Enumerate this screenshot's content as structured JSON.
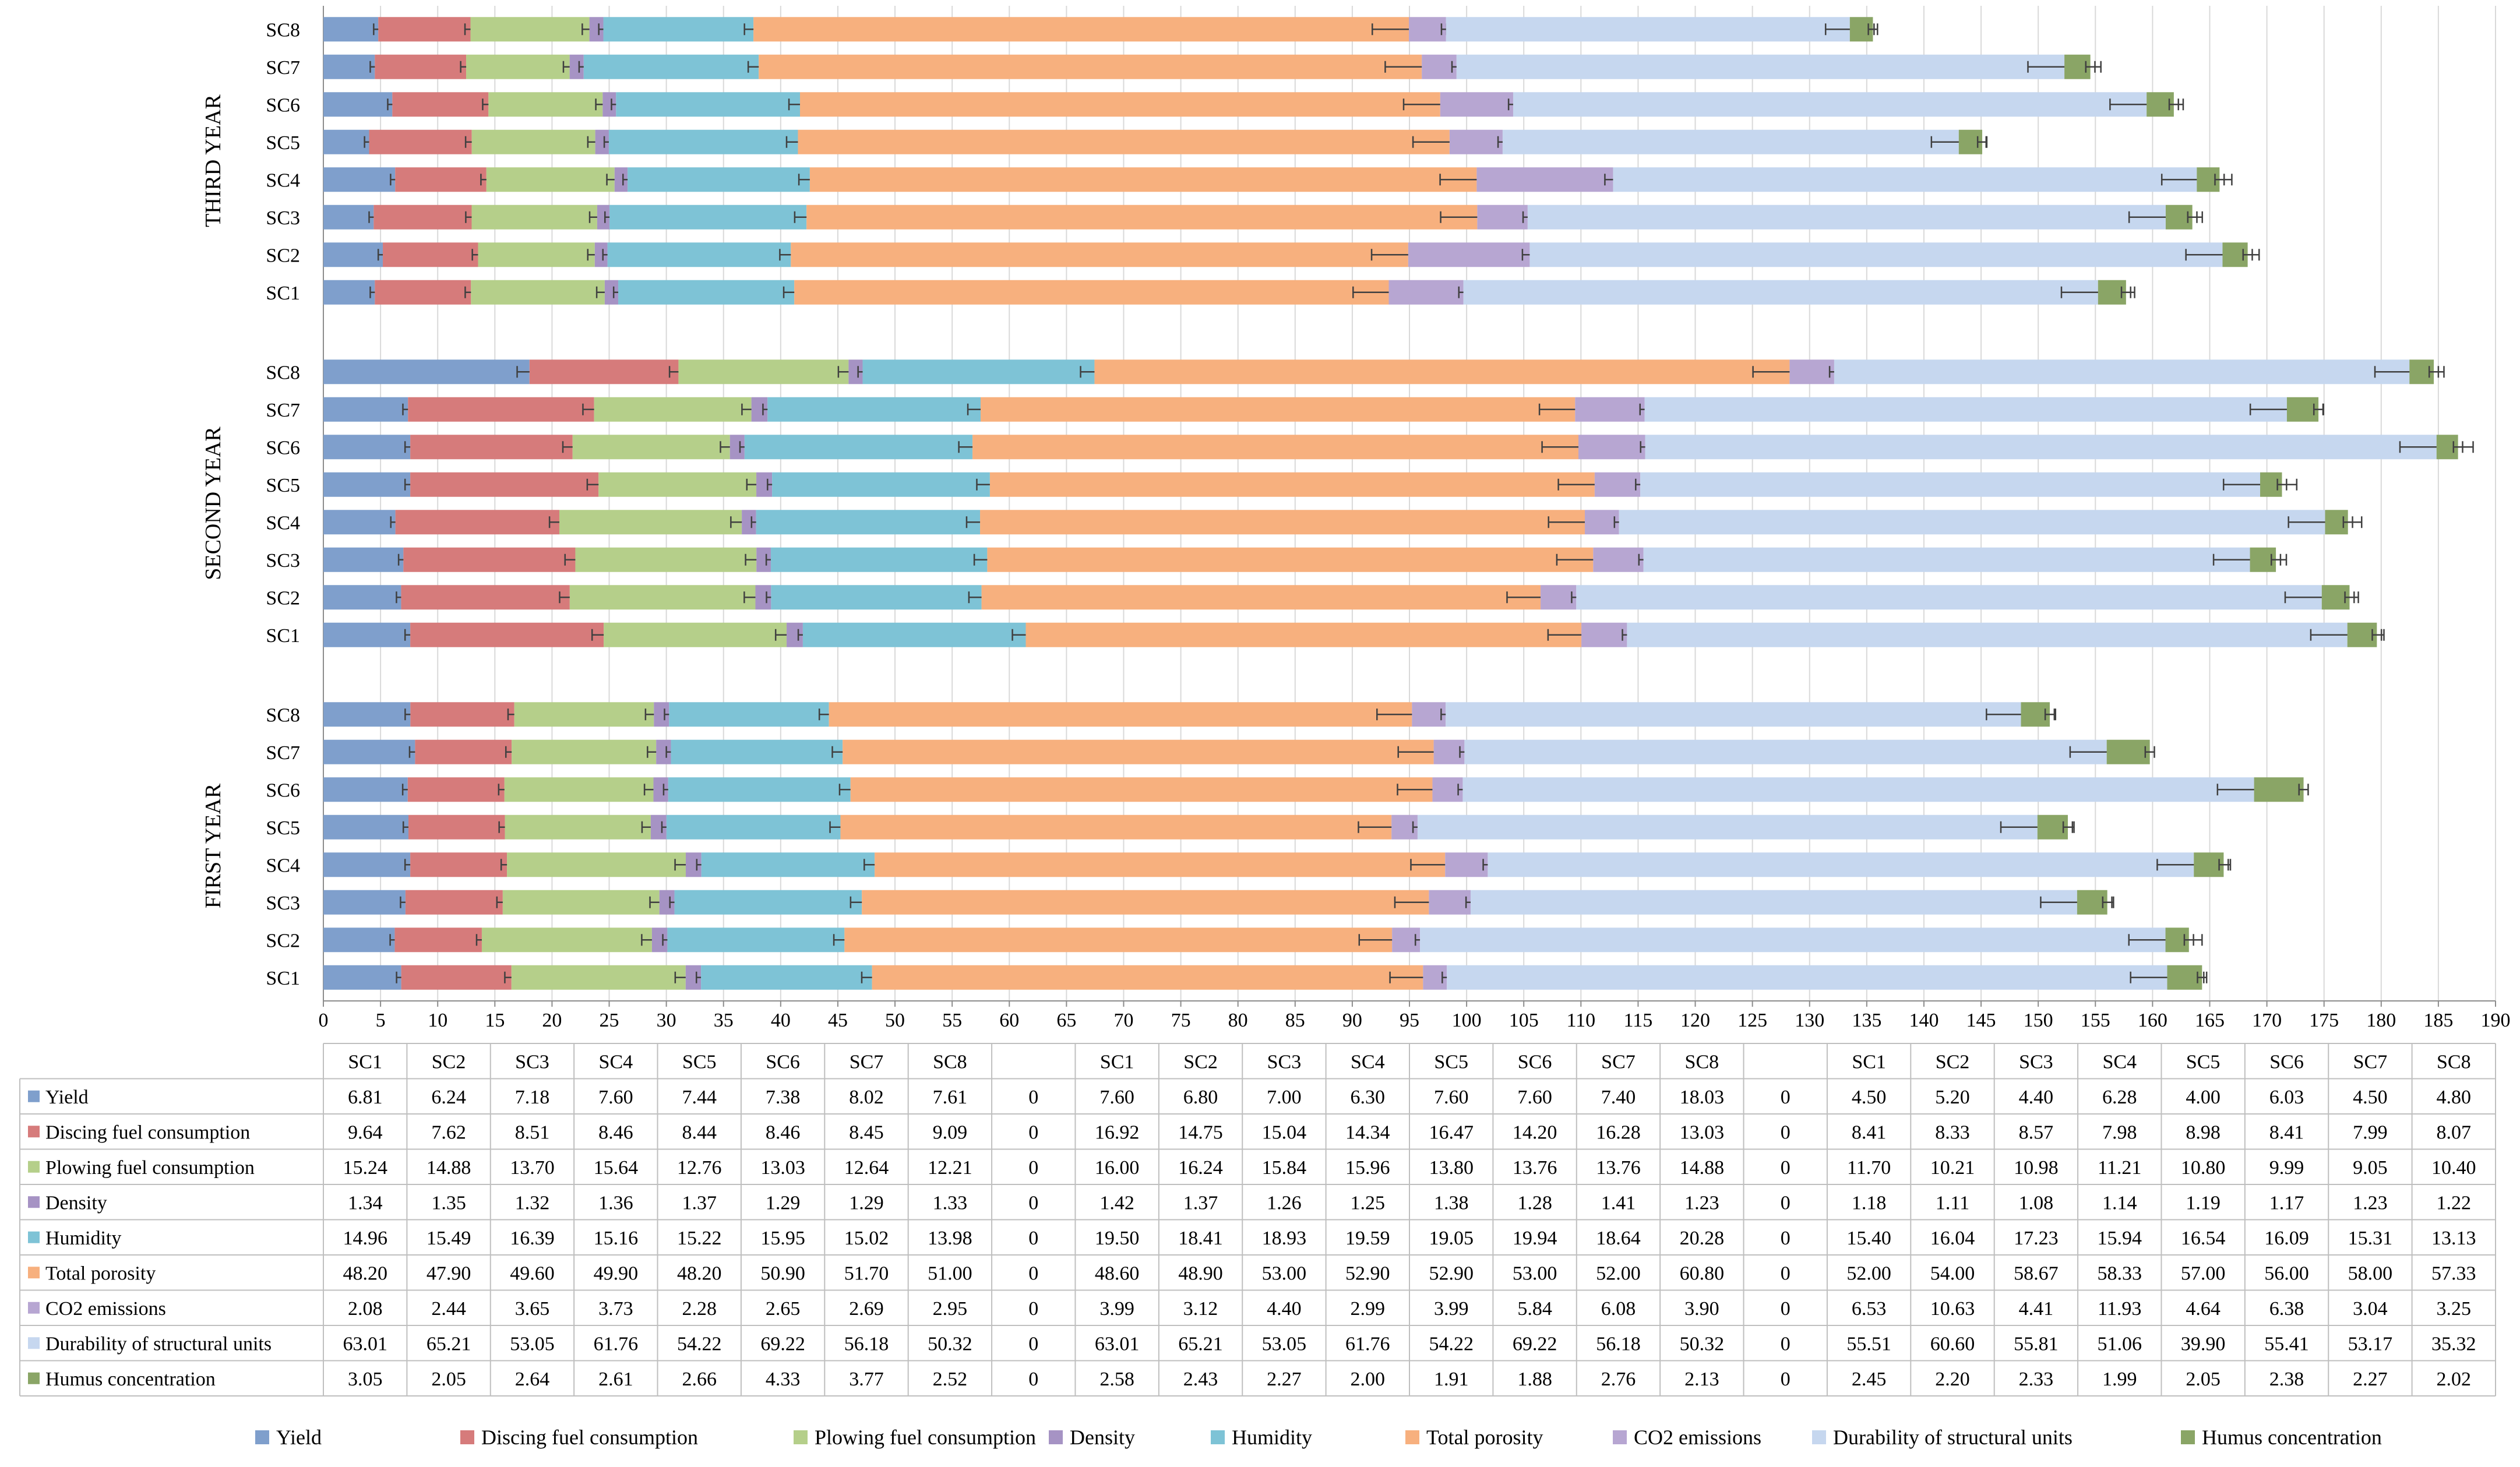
{
  "chart_data": {
    "type": "bar",
    "orientation": "horizontal",
    "stacked": true,
    "title": "",
    "xlabel": "",
    "ylabel": "",
    "xlim": [
      0,
      190
    ],
    "x_ticks": [
      0,
      5,
      10,
      15,
      20,
      25,
      30,
      35,
      40,
      45,
      50,
      55,
      60,
      65,
      70,
      75,
      80,
      85,
      90,
      95,
      100,
      105,
      110,
      115,
      120,
      125,
      130,
      135,
      140,
      145,
      150,
      155,
      160,
      165,
      170,
      175,
      180,
      185,
      190
    ],
    "grid": "vertical",
    "legend_position": "bottom",
    "error_bars": true,
    "categories": [
      "SC1",
      "SC2",
      "SC3",
      "SC4",
      "SC5",
      "SC6",
      "SC7",
      "SC8"
    ],
    "separator_value": "0",
    "colors": [
      "#7f9fcc",
      "#d67b7b",
      "#b5cf8a",
      "#a693c4",
      "#7ec3d6",
      "#f7b07e",
      "#b7a6d2",
      "#c6d7ef",
      "#8aa566"
    ],
    "series_names": [
      "Yield",
      "Discing fuel consumption",
      "Plowing fuel consumption",
      "Density",
      "Humidity",
      "Total porosity",
      "CO2 emissions",
      "Durability of structural units",
      "Humus concentration"
    ],
    "groups": [
      {
        "name": "FIRST YEAR",
        "values": [
          [
            6.81,
            6.24,
            7.18,
            7.6,
            7.44,
            7.38,
            8.02,
            7.61
          ],
          [
            9.64,
            7.62,
            8.51,
            8.46,
            8.44,
            8.46,
            8.45,
            9.09
          ],
          [
            15.24,
            14.88,
            13.7,
            15.64,
            12.76,
            13.03,
            12.64,
            12.21
          ],
          [
            1.34,
            1.35,
            1.32,
            1.36,
            1.37,
            1.29,
            1.29,
            1.33
          ],
          [
            14.96,
            15.49,
            16.39,
            15.16,
            15.22,
            15.95,
            15.02,
            13.98
          ],
          [
            48.2,
            47.9,
            49.6,
            49.9,
            48.2,
            50.9,
            51.7,
            51.0
          ],
          [
            2.08,
            2.44,
            3.65,
            3.73,
            2.28,
            2.65,
            2.69,
            2.95
          ],
          [
            63.01,
            65.21,
            53.05,
            61.76,
            54.22,
            69.22,
            56.18,
            50.32
          ],
          [
            3.05,
            2.05,
            2.64,
            2.61,
            2.66,
            4.33,
            3.77,
            2.52
          ]
        ],
        "value_labels": [
          [
            "6.81",
            "6.24",
            "7.18",
            "7.60",
            "7.44",
            "7.38",
            "8.02",
            "7.61"
          ],
          [
            "9.64",
            "7.62",
            "8.51",
            "8.46",
            "8.44",
            "8.46",
            "8.45",
            "9.09"
          ],
          [
            "15.24",
            "14.88",
            "13.70",
            "15.64",
            "12.76",
            "13.03",
            "12.64",
            "12.21"
          ],
          [
            "1.34",
            "1.35",
            "1.32",
            "1.36",
            "1.37",
            "1.29",
            "1.29",
            "1.33"
          ],
          [
            "14.96",
            "15.49",
            "16.39",
            "15.16",
            "15.22",
            "15.95",
            "15.02",
            "13.98"
          ],
          [
            "48.20",
            "47.90",
            "49.60",
            "49.90",
            "48.20",
            "50.90",
            "51.70",
            "51.00"
          ],
          [
            "2.08",
            "2.44",
            "3.65",
            "3.73",
            "2.28",
            "2.65",
            "2.69",
            "2.95"
          ],
          [
            "63.01",
            "65.21",
            "53.05",
            "61.76",
            "54.22",
            "69.22",
            "56.18",
            "50.32"
          ],
          [
            "3.05",
            "2.05",
            "2.64",
            "2.61",
            "2.66",
            "4.33",
            "3.77",
            "2.52"
          ]
        ]
      },
      {
        "name": "SECOND YEAR",
        "values": [
          [
            7.6,
            6.8,
            7.0,
            6.3,
            7.6,
            7.6,
            7.4,
            18.03
          ],
          [
            16.92,
            14.75,
            15.04,
            14.34,
            16.47,
            14.2,
            16.28,
            13.03
          ],
          [
            16.0,
            16.24,
            15.84,
            15.96,
            13.8,
            13.76,
            13.76,
            14.88
          ],
          [
            1.42,
            1.37,
            1.26,
            1.25,
            1.38,
            1.28,
            1.41,
            1.23
          ],
          [
            19.5,
            18.41,
            18.93,
            19.59,
            19.05,
            19.94,
            18.64,
            20.28
          ],
          [
            48.6,
            48.9,
            53.0,
            52.9,
            52.9,
            53.0,
            52.0,
            60.8
          ],
          [
            3.99,
            3.12,
            4.4,
            2.99,
            3.99,
            5.84,
            6.08,
            3.9
          ],
          [
            63.01,
            65.21,
            53.05,
            61.76,
            54.22,
            69.22,
            56.18,
            50.32
          ],
          [
            2.58,
            2.43,
            2.27,
            2.0,
            1.91,
            1.88,
            2.76,
            2.13
          ]
        ],
        "value_labels": [
          [
            "7.60",
            "6.80",
            "7.00",
            "6.30",
            "7.60",
            "7.60",
            "7.40",
            "18.03"
          ],
          [
            "16.92",
            "14.75",
            "15.04",
            "14.34",
            "16.47",
            "14.20",
            "16.28",
            "13.03"
          ],
          [
            "16.00",
            "16.24",
            "15.84",
            "15.96",
            "13.80",
            "13.76",
            "13.76",
            "14.88"
          ],
          [
            "1.42",
            "1.37",
            "1.26",
            "1.25",
            "1.38",
            "1.28",
            "1.41",
            "1.23"
          ],
          [
            "19.50",
            "18.41",
            "18.93",
            "19.59",
            "19.05",
            "19.94",
            "18.64",
            "20.28"
          ],
          [
            "48.60",
            "48.90",
            "53.00",
            "52.90",
            "52.90",
            "53.00",
            "52.00",
            "60.80"
          ],
          [
            "3.99",
            "3.12",
            "4.40",
            "2.99",
            "3.99",
            "5.84",
            "6.08",
            "3.90"
          ],
          [
            "63.01",
            "65.21",
            "53.05",
            "61.76",
            "54.22",
            "69.22",
            "56.18",
            "50.32"
          ],
          [
            "2.58",
            "2.43",
            "2.27",
            "2.00",
            "1.91",
            "1.88",
            "2.76",
            "2.13"
          ]
        ]
      },
      {
        "name": "THIRD YEAR",
        "values": [
          [
            4.5,
            5.2,
            4.4,
            6.28,
            4.0,
            6.03,
            4.5,
            4.8
          ],
          [
            8.41,
            8.33,
            8.57,
            7.98,
            8.98,
            8.41,
            7.99,
            8.07
          ],
          [
            11.7,
            10.21,
            10.98,
            11.21,
            10.8,
            9.99,
            9.05,
            10.4
          ],
          [
            1.18,
            1.11,
            1.08,
            1.14,
            1.19,
            1.17,
            1.23,
            1.22
          ],
          [
            15.4,
            16.04,
            17.23,
            15.94,
            16.54,
            16.09,
            15.31,
            13.13
          ],
          [
            52.0,
            54.0,
            58.67,
            58.33,
            57.0,
            56.0,
            58.0,
            57.33
          ],
          [
            6.53,
            10.63,
            4.41,
            11.93,
            4.64,
            6.38,
            3.04,
            3.25
          ],
          [
            55.51,
            60.6,
            55.81,
            51.06,
            39.9,
            55.41,
            53.17,
            35.32
          ],
          [
            2.45,
            2.2,
            2.33,
            1.99,
            2.05,
            2.38,
            2.27,
            2.02
          ]
        ],
        "value_labels": [
          [
            "4.50",
            "5.20",
            "4.40",
            "6.28",
            "4.00",
            "6.03",
            "4.50",
            "4.80"
          ],
          [
            "8.41",
            "8.33",
            "8.57",
            "7.98",
            "8.98",
            "8.41",
            "7.99",
            "8.07"
          ],
          [
            "11.70",
            "10.21",
            "10.98",
            "11.21",
            "10.80",
            "9.99",
            "9.05",
            "10.40"
          ],
          [
            "1.18",
            "1.11",
            "1.08",
            "1.14",
            "1.19",
            "1.17",
            "1.23",
            "1.22"
          ],
          [
            "15.40",
            "16.04",
            "17.23",
            "15.94",
            "16.54",
            "16.09",
            "15.31",
            "13.13"
          ],
          [
            "52.00",
            "54.00",
            "58.67",
            "58.33",
            "57.00",
            "56.00",
            "58.00",
            "57.33"
          ],
          [
            "6.53",
            "10.63",
            "4.41",
            "11.93",
            "4.64",
            "6.38",
            "3.04",
            "3.25"
          ],
          [
            "55.51",
            "60.60",
            "55.81",
            "51.06",
            "39.90",
            "55.41",
            "53.17",
            "35.32"
          ],
          [
            "2.45",
            "2.20",
            "2.33",
            "1.99",
            "2.05",
            "2.38",
            "2.27",
            "2.02"
          ]
        ]
      }
    ]
  }
}
